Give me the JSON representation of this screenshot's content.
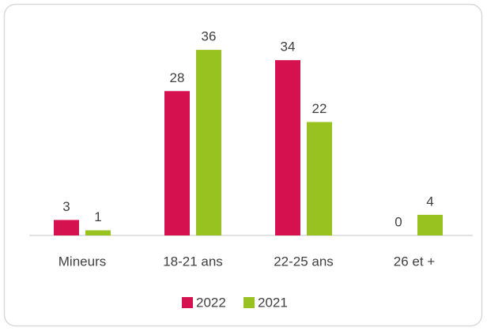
{
  "chart_data": {
    "type": "bar",
    "categories": [
      "Mineurs",
      "18-21 ans",
      "22-25 ans",
      "26 et +"
    ],
    "series": [
      {
        "name": "2022",
        "color": "#d6114f",
        "values": [
          3,
          28,
          34,
          0
        ]
      },
      {
        "name": "2021",
        "color": "#98c21f",
        "values": [
          1,
          36,
          22,
          4
        ]
      }
    ],
    "ylim": [
      0,
      40
    ],
    "legend": "bottom"
  }
}
